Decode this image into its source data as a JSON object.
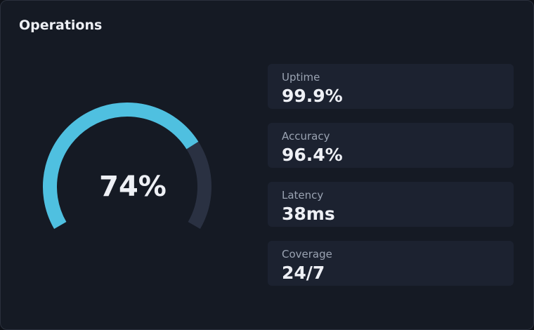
{
  "chart_data": {
    "type": "gauge",
    "title": "Operations",
    "values": [
      74
    ],
    "value_labels": [
      "74%"
    ],
    "ylim": [
      0,
      100
    ],
    "color": "#4fc0e0",
    "track_color": "#2a3142"
  },
  "kpis": [
    {
      "label": "Uptime",
      "value": "99.9%"
    },
    {
      "label": "Accuracy",
      "value": "96.4%"
    },
    {
      "label": "Latency",
      "value": "38ms"
    },
    {
      "label": "Coverage",
      "value": "24/7"
    }
  ]
}
